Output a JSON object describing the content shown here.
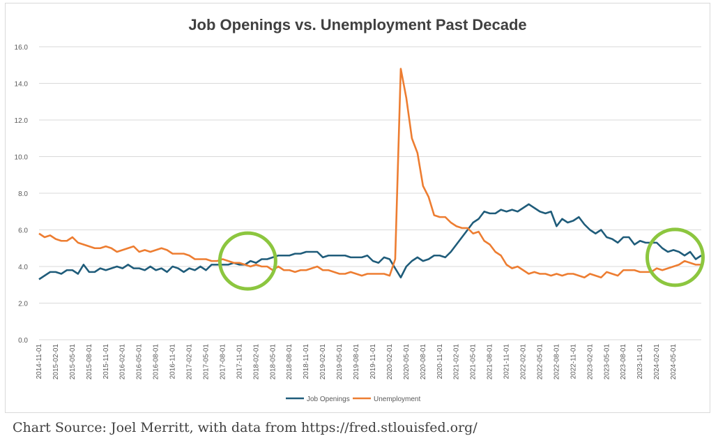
{
  "source_note": "Chart Source: Joel Merritt, with data from https://fred.stlouisfed.org/",
  "colors": {
    "job_openings": "#1f5c7a",
    "unemployment": "#ed7d31",
    "highlight_circle": "#8cc63f",
    "gridline": "#d9d9d9"
  },
  "chart_data": {
    "type": "line",
    "title": "Job Openings vs. Unemployment Past Decade",
    "xlabel": "",
    "ylabel": "",
    "ylim": [
      0,
      16
    ],
    "yticks": [
      "0.0",
      "2.0",
      "4.0",
      "6.0",
      "8.0",
      "10.0",
      "12.0",
      "14.0",
      "16.0"
    ],
    "grid": "horizontal",
    "legend_position": "bottom",
    "x_tick_labels": [
      "2014-11-01",
      "2015-02-01",
      "2015-05-01",
      "2015-08-01",
      "2015-11-01",
      "2016-02-01",
      "2016-05-01",
      "2016-08-01",
      "2016-11-01",
      "2017-02-01",
      "2017-05-01",
      "2017-08-01",
      "2017-11-01",
      "2018-02-01",
      "2018-05-01",
      "2018-08-01",
      "2018-11-01",
      "2019-02-01",
      "2019-05-01",
      "2019-08-01",
      "2019-11-01",
      "2020-02-01",
      "2020-05-01",
      "2020-08-01",
      "2020-11-01",
      "2021-02-01",
      "2021-05-01",
      "2021-08-01",
      "2021-11-01",
      "2022-02-01",
      "2022-05-01",
      "2022-08-01",
      "2022-11-01",
      "2023-02-01",
      "2023-05-01",
      "2023-08-01",
      "2023-11-01",
      "2024-02-01",
      "2024-05-01"
    ],
    "x_start": "2014-11",
    "x_frequency": "monthly",
    "series": [
      {
        "name": "Job Openings",
        "values": [
          3.3,
          3.5,
          3.7,
          3.7,
          3.6,
          3.8,
          3.8,
          3.6,
          4.1,
          3.7,
          3.7,
          3.9,
          3.8,
          3.9,
          4.0,
          3.9,
          4.1,
          3.9,
          3.9,
          3.8,
          4.0,
          3.8,
          3.9,
          3.7,
          4.0,
          3.9,
          3.7,
          3.9,
          3.8,
          4.0,
          3.8,
          4.1,
          4.1,
          4.1,
          4.1,
          4.2,
          4.1,
          4.1,
          4.3,
          4.2,
          4.4,
          4.4,
          4.5,
          4.6,
          4.6,
          4.6,
          4.7,
          4.7,
          4.8,
          4.8,
          4.8,
          4.5,
          4.6,
          4.6,
          4.6,
          4.6,
          4.5,
          4.5,
          4.5,
          4.6,
          4.3,
          4.2,
          4.5,
          4.4,
          3.9,
          3.4,
          4.0,
          4.3,
          4.5,
          4.3,
          4.4,
          4.6,
          4.6,
          4.5,
          4.8,
          5.2,
          5.6,
          6.0,
          6.4,
          6.6,
          7.0,
          6.9,
          6.9,
          7.1,
          7.0,
          7.1,
          7.0,
          7.2,
          7.4,
          7.2,
          7.0,
          6.9,
          7.0,
          6.2,
          6.6,
          6.4,
          6.5,
          6.7,
          6.3,
          6.0,
          5.8,
          6.0,
          5.6,
          5.5,
          5.3,
          5.6,
          5.6,
          5.2,
          5.4,
          5.3,
          5.3,
          5.3,
          5.0,
          4.8,
          4.9,
          4.8,
          4.6,
          4.8,
          4.4,
          4.6
        ]
      },
      {
        "name": "Unemployment",
        "values": [
          5.8,
          5.6,
          5.7,
          5.5,
          5.4,
          5.4,
          5.6,
          5.3,
          5.2,
          5.1,
          5.0,
          5.0,
          5.1,
          5.0,
          4.8,
          4.9,
          5.0,
          5.1,
          4.8,
          4.9,
          4.8,
          4.9,
          5.0,
          4.9,
          4.7,
          4.7,
          4.7,
          4.6,
          4.4,
          4.4,
          4.4,
          4.3,
          4.3,
          4.4,
          4.3,
          4.2,
          4.2,
          4.1,
          4.0,
          4.1,
          4.0,
          4.0,
          3.8,
          4.0,
          3.8,
          3.8,
          3.7,
          3.8,
          3.8,
          3.9,
          4.0,
          3.8,
          3.8,
          3.7,
          3.6,
          3.6,
          3.7,
          3.6,
          3.5,
          3.6,
          3.6,
          3.6,
          3.6,
          3.5,
          4.4,
          14.8,
          13.2,
          11.0,
          10.2,
          8.4,
          7.8,
          6.8,
          6.7,
          6.7,
          6.4,
          6.2,
          6.1,
          6.1,
          5.8,
          5.9,
          5.4,
          5.2,
          4.8,
          4.6,
          4.1,
          3.9,
          4.0,
          3.8,
          3.6,
          3.7,
          3.6,
          3.6,
          3.5,
          3.6,
          3.5,
          3.6,
          3.6,
          3.5,
          3.4,
          3.6,
          3.5,
          3.4,
          3.7,
          3.6,
          3.5,
          3.8,
          3.8,
          3.8,
          3.7,
          3.7,
          3.7,
          3.9,
          3.8,
          3.9,
          4.0,
          4.1,
          4.3,
          4.2,
          4.1,
          4.1
        ]
      }
    ],
    "highlights": [
      {
        "shape": "circle",
        "around": "2017-11 to 2018-01"
      },
      {
        "shape": "circle",
        "around": "2024-02 to 2024-07"
      }
    ]
  }
}
